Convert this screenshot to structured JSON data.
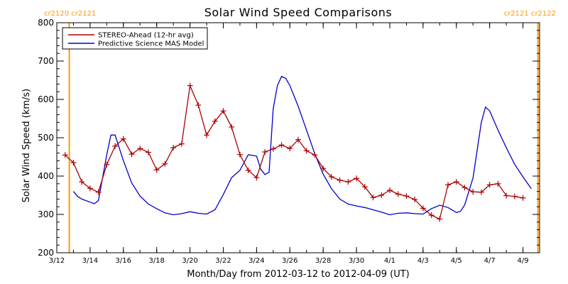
{
  "chart_data": {
    "type": "line",
    "title": "Solar Wind Speed Comparisons",
    "xlabel": "Month/Day from 2012-03-12 to 2012-04-09 (UT)",
    "ylabel": "Solar Wind Speed (km/s)",
    "xlim": [
      "2012-03-12",
      "2012-04-10"
    ],
    "ylim": [
      200,
      800
    ],
    "x_ticks": [
      {
        "date": "2012-03-12",
        "label": "3/12"
      },
      {
        "date": "2012-03-14",
        "label": "3/14"
      },
      {
        "date": "2012-03-16",
        "label": "3/16"
      },
      {
        "date": "2012-03-18",
        "label": "3/18"
      },
      {
        "date": "2012-03-20",
        "label": "3/20"
      },
      {
        "date": "2012-03-22",
        "label": "3/22"
      },
      {
        "date": "2012-03-24",
        "label": "3/24"
      },
      {
        "date": "2012-03-26",
        "label": "3/26"
      },
      {
        "date": "2012-03-28",
        "label": "3/28"
      },
      {
        "date": "2012-03-30",
        "label": "3/30"
      },
      {
        "date": "2012-04-01",
        "label": "4/1"
      },
      {
        "date": "2012-04-03",
        "label": "4/3"
      },
      {
        "date": "2012-04-05",
        "label": "4/5"
      },
      {
        "date": "2012-04-07",
        "label": "4/7"
      },
      {
        "date": "2012-04-09",
        "label": "4/9"
      }
    ],
    "y_ticks": [
      200,
      300,
      400,
      500,
      600,
      700,
      800
    ],
    "legend_position": "top-left",
    "colors": {
      "stereo": "#aa0000",
      "model": "#0000cc",
      "cr_line": "#ff9900"
    },
    "carrington_markers": [
      {
        "date": "2012-03-12 18:00",
        "label": "cr2120 cr2121",
        "label_side": "top-left"
      },
      {
        "date": "2012-04-09 21:36",
        "label": "cr2121 cr2122",
        "label_side": "top-right"
      }
    ],
    "series": [
      {
        "name": "STEREO-Ahead (12-hr avg)",
        "marker": "plus",
        "points": [
          [
            "2012-03-12 12:00",
            455
          ],
          [
            "2012-03-13 00:00",
            435
          ],
          [
            "2012-03-13 12:00",
            385
          ],
          [
            "2012-03-14 00:00",
            368
          ],
          [
            "2012-03-14 12:00",
            358
          ],
          [
            "2012-03-15 00:00",
            430
          ],
          [
            "2012-03-15 12:00",
            478
          ],
          [
            "2012-03-16 00:00",
            497
          ],
          [
            "2012-03-16 12:00",
            457
          ],
          [
            "2012-03-17 00:00",
            472
          ],
          [
            "2012-03-17 12:00",
            462
          ],
          [
            "2012-03-18 00:00",
            416
          ],
          [
            "2012-03-18 12:00",
            432
          ],
          [
            "2012-03-19 00:00",
            474
          ],
          [
            "2012-03-19 12:00",
            484
          ],
          [
            "2012-03-20 00:00",
            636
          ],
          [
            "2012-03-20 12:00",
            585
          ],
          [
            "2012-03-21 00:00",
            507
          ],
          [
            "2012-03-21 12:00",
            543
          ],
          [
            "2012-03-22 00:00",
            570
          ],
          [
            "2012-03-22 12:00",
            528
          ],
          [
            "2012-03-23 00:00",
            456
          ],
          [
            "2012-03-23 12:00",
            415
          ],
          [
            "2012-03-24 00:00",
            396
          ],
          [
            "2012-03-24 12:00",
            463
          ],
          [
            "2012-03-25 00:00",
            471
          ],
          [
            "2012-03-25 12:00",
            481
          ],
          [
            "2012-03-26 00:00",
            472
          ],
          [
            "2012-03-26 12:00",
            495
          ],
          [
            "2012-03-27 00:00",
            466
          ],
          [
            "2012-03-27 12:00",
            455
          ],
          [
            "2012-03-28 00:00",
            420
          ],
          [
            "2012-03-28 12:00",
            398
          ],
          [
            "2012-03-29 00:00",
            389
          ],
          [
            "2012-03-29 12:00",
            385
          ],
          [
            "2012-03-30 00:00",
            394
          ],
          [
            "2012-03-30 12:00",
            372
          ],
          [
            "2012-03-31 00:00",
            344
          ],
          [
            "2012-03-31 12:00",
            350
          ],
          [
            "2012-04-01 00:00",
            363
          ],
          [
            "2012-04-01 12:00",
            353
          ],
          [
            "2012-04-02 00:00",
            348
          ],
          [
            "2012-04-02 12:00",
            339
          ],
          [
            "2012-04-03 00:00",
            316
          ],
          [
            "2012-04-03 12:00",
            298
          ],
          [
            "2012-04-04 00:00",
            288
          ],
          [
            "2012-04-04 12:00",
            377
          ],
          [
            "2012-04-05 00:00",
            385
          ],
          [
            "2012-04-05 12:00",
            370
          ],
          [
            "2012-04-06 00:00",
            359
          ],
          [
            "2012-04-06 12:00",
            358
          ],
          [
            "2012-04-07 00:00",
            377
          ],
          [
            "2012-04-07 12:00",
            380
          ],
          [
            "2012-04-08 00:00",
            349
          ],
          [
            "2012-04-08 12:00",
            347
          ],
          [
            "2012-04-09 00:00",
            343
          ]
        ]
      },
      {
        "name": "Predictive Science MAS Model",
        "marker": "none",
        "points": [
          [
            "2012-03-13 00:00",
            360
          ],
          [
            "2012-03-13 06:00",
            347
          ],
          [
            "2012-03-13 12:00",
            340
          ],
          [
            "2012-03-14 00:00",
            332
          ],
          [
            "2012-03-14 06:00",
            328
          ],
          [
            "2012-03-14 12:00",
            336
          ],
          [
            "2012-03-15 00:00",
            455
          ],
          [
            "2012-03-15 06:00",
            507
          ],
          [
            "2012-03-15 12:00",
            507
          ],
          [
            "2012-03-16 00:00",
            440
          ],
          [
            "2012-03-16 12:00",
            382
          ],
          [
            "2012-03-17 00:00",
            348
          ],
          [
            "2012-03-17 12:00",
            327
          ],
          [
            "2012-03-18 00:00",
            315
          ],
          [
            "2012-03-18 12:00",
            304
          ],
          [
            "2012-03-19 00:00",
            299
          ],
          [
            "2012-03-19 12:00",
            302
          ],
          [
            "2012-03-20 00:00",
            307
          ],
          [
            "2012-03-20 12:00",
            303
          ],
          [
            "2012-03-21 00:00",
            301
          ],
          [
            "2012-03-21 12:00",
            312
          ],
          [
            "2012-03-22 00:00",
            352
          ],
          [
            "2012-03-22 12:00",
            396
          ],
          [
            "2012-03-23 00:00",
            415
          ],
          [
            "2012-03-23 12:00",
            456
          ],
          [
            "2012-03-24 00:00",
            452
          ],
          [
            "2012-03-24 06:00",
            418
          ],
          [
            "2012-03-24 12:00",
            404
          ],
          [
            "2012-03-24 18:00",
            410
          ],
          [
            "2012-03-25 00:00",
            576
          ],
          [
            "2012-03-25 06:00",
            636
          ],
          [
            "2012-03-25 12:00",
            660
          ],
          [
            "2012-03-25 18:00",
            655
          ],
          [
            "2012-03-26 00:00",
            636
          ],
          [
            "2012-03-26 12:00",
            582
          ],
          [
            "2012-03-27 00:00",
            520
          ],
          [
            "2012-03-27 12:00",
            458
          ],
          [
            "2012-03-28 00:00",
            405
          ],
          [
            "2012-03-28 12:00",
            367
          ],
          [
            "2012-03-29 00:00",
            340
          ],
          [
            "2012-03-29 12:00",
            327
          ],
          [
            "2012-03-30 00:00",
            322
          ],
          [
            "2012-03-30 12:00",
            318
          ],
          [
            "2012-03-31 00:00",
            312
          ],
          [
            "2012-03-31 12:00",
            306
          ],
          [
            "2012-04-01 00:00",
            299
          ],
          [
            "2012-04-01 12:00",
            303
          ],
          [
            "2012-04-02 00:00",
            304
          ],
          [
            "2012-04-02 12:00",
            302
          ],
          [
            "2012-04-03 00:00",
            301
          ],
          [
            "2012-04-03 12:00",
            315
          ],
          [
            "2012-04-04 00:00",
            324
          ],
          [
            "2012-04-04 12:00",
            318
          ],
          [
            "2012-04-05 00:00",
            305
          ],
          [
            "2012-04-05 06:00",
            308
          ],
          [
            "2012-04-05 12:00",
            325
          ],
          [
            "2012-04-06 00:00",
            395
          ],
          [
            "2012-04-06 12:00",
            540
          ],
          [
            "2012-04-06 18:00",
            580
          ],
          [
            "2012-04-07 00:00",
            570
          ],
          [
            "2012-04-07 12:00",
            520
          ],
          [
            "2012-04-08 00:00",
            474
          ],
          [
            "2012-04-08 12:00",
            431
          ],
          [
            "2012-04-09 00:00",
            398
          ],
          [
            "2012-04-09 12:00",
            367
          ]
        ]
      }
    ]
  }
}
